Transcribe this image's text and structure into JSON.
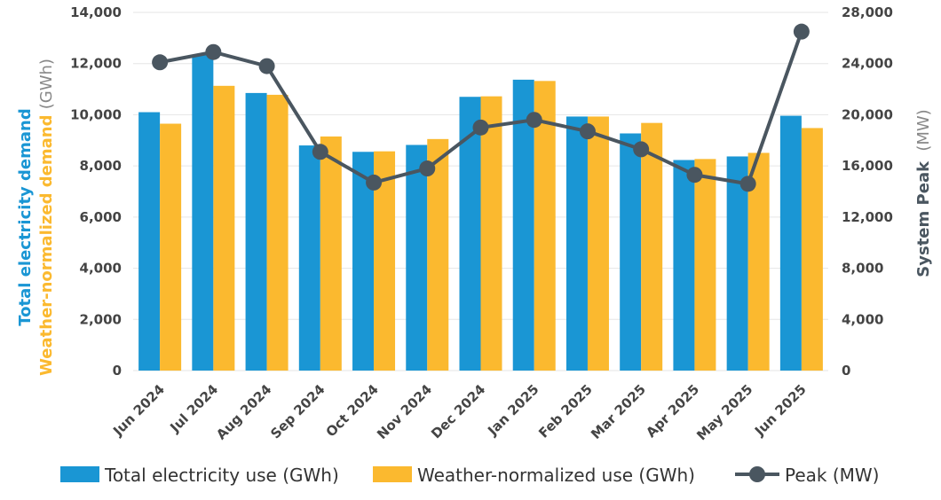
{
  "chart_data": {
    "type": "bar",
    "categories": [
      "Jun 2024",
      "Jul 2024",
      "Aug 2024",
      "Sep 2024",
      "Oct 2024",
      "Nov 2024",
      "Dec 2024",
      "Jan 2025",
      "Feb 2025",
      "Mar 2025",
      "Apr 2025",
      "May 2025",
      "Jun 2025"
    ],
    "series": [
      {
        "name": "Total electricity use (GWh)",
        "type": "bar",
        "axis": "left",
        "color": "#1a96d4",
        "values": [
          10100,
          12350,
          10850,
          8800,
          8550,
          8820,
          10700,
          11370,
          9930,
          9270,
          8230,
          8370,
          9960
        ]
      },
      {
        "name": "Weather-normalized use (GWh)",
        "type": "bar",
        "axis": "left",
        "color": "#fbb92f",
        "values": [
          9650,
          11130,
          10780,
          9150,
          8570,
          9050,
          10720,
          11320,
          9930,
          9680,
          8270,
          8510,
          9480
        ]
      },
      {
        "name": "Peak (MW)",
        "type": "line",
        "axis": "right",
        "color": "#4a5660",
        "values": [
          24100,
          24900,
          23800,
          17100,
          14700,
          15800,
          19000,
          19600,
          18700,
          17300,
          15300,
          14600,
          26500
        ]
      }
    ],
    "y_left": {
      "label_part1": "Total electricity demand",
      "label_part2": "Weather-normalized demand",
      "label_unit": "(GWh)",
      "min": 0,
      "max": 14000,
      "ticks": [
        "0",
        "2,000",
        "4,000",
        "6,000",
        "8,000",
        "10,000",
        "12,000",
        "14,000"
      ],
      "label_color1": "#1a96d4",
      "label_color2": "#fbb92f"
    },
    "y_right": {
      "label": "System Peak",
      "label_unit": "(MW)",
      "min": 0,
      "max": 28000,
      "ticks": [
        "0",
        "4,000",
        "8,000",
        "12,000",
        "16,000",
        "20,000",
        "24,000",
        "28,000"
      ],
      "label_color": "#4a5660"
    },
    "grid": true,
    "legend_position": "bottom"
  }
}
